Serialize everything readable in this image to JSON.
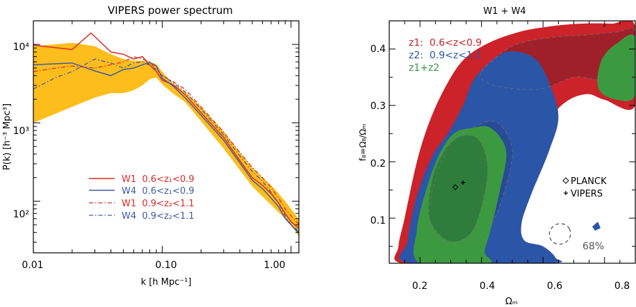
{
  "chart_data": [
    {
      "type": "line",
      "title": "VIPERS power spectrum",
      "xlabel": "k [h Mpc⁻¹]",
      "ylabel": "P(k) [h⁻³ Mpc³]",
      "xscale": "log",
      "yscale": "log",
      "xlim": [
        0.01,
        1.15
      ],
      "ylim": [
        22,
        20000
      ],
      "x_ticks": [
        {
          "value": 0.01,
          "label": "0.01"
        },
        {
          "value": 0.1,
          "label": "0.10"
        },
        {
          "value": 1.0,
          "label": "1.00"
        }
      ],
      "y_ticks": [
        {
          "value": 100,
          "label": "10²"
        },
        {
          "value": 1000,
          "label": "10³"
        },
        {
          "value": 10000,
          "label": "10⁴"
        }
      ],
      "legend_position": "lower-left",
      "band": {
        "color": "#FDBD1A",
        "x": [
          0.01,
          0.02,
          0.03,
          0.04,
          0.05,
          0.06,
          0.07,
          0.08,
          0.09,
          0.1,
          0.12,
          0.15,
          0.2,
          0.3,
          0.4,
          0.5,
          0.6,
          0.7,
          0.8,
          0.9,
          1.0,
          1.1,
          1.15
        ],
        "lower": [
          1000,
          1600,
          2100,
          2400,
          2400,
          2600,
          3000,
          3600,
          3800,
          3100,
          2400,
          1850,
          1050,
          470,
          250,
          155,
          115,
          90,
          72,
          60,
          50,
          40,
          35
        ],
        "upper": [
          9500,
          10500,
          9500,
          7500,
          6500,
          6200,
          6200,
          6000,
          5600,
          4500,
          3200,
          2500,
          1600,
          780,
          420,
          270,
          200,
          160,
          125,
          100,
          80,
          65,
          58
        ]
      },
      "series": [
        {
          "name": "W1  0.6<z₁<0.9",
          "color": "#DD2A25",
          "dash": "solid",
          "x": [
            0.01,
            0.02,
            0.028,
            0.04,
            0.05,
            0.06,
            0.07,
            0.08,
            0.09,
            0.1,
            0.12,
            0.15,
            0.2,
            0.3,
            0.4,
            0.5,
            0.6,
            0.7,
            0.8,
            0.9,
            1.0,
            1.1,
            1.15
          ],
          "y": [
            9800,
            8600,
            14000,
            8000,
            7500,
            6500,
            7000,
            5500,
            4500,
            3500,
            3100,
            2300,
            1350,
            650,
            330,
            200,
            160,
            125,
            95,
            70,
            55,
            48,
            45
          ]
        },
        {
          "name": "W4  0.6<z₁<0.9",
          "color": "#3E5AA6",
          "dash": "solid",
          "x": [
            0.01,
            0.02,
            0.03,
            0.04,
            0.05,
            0.06,
            0.07,
            0.08,
            0.09,
            0.1,
            0.12,
            0.15,
            0.2,
            0.3,
            0.4,
            0.5,
            0.6,
            0.7,
            0.8,
            0.9,
            1.0,
            1.1,
            1.15
          ],
          "y": [
            5500,
            5800,
            4600,
            4000,
            4800,
            5000,
            5500,
            5900,
            5300,
            3700,
            3000,
            2100,
            1250,
            600,
            310,
            185,
            145,
            110,
            85,
            60,
            50,
            42,
            40
          ]
        },
        {
          "name": "W1  0.9<z₂<1.1",
          "color": "#DD2A25",
          "dash": "6,3,1.5,3",
          "x": [
            0.01,
            0.015,
            0.02,
            0.03,
            0.04,
            0.05,
            0.06,
            0.07,
            0.08,
            0.09,
            0.1,
            0.12,
            0.15,
            0.2,
            0.3,
            0.4,
            0.5,
            0.6,
            0.7,
            0.8,
            0.9,
            1.0,
            1.1,
            1.15
          ],
          "y": [
            4500,
            5000,
            5300,
            5000,
            5500,
            6000,
            7000,
            6500,
            6000,
            4800,
            4000,
            3400,
            2700,
            1600,
            760,
            420,
            270,
            200,
            150,
            110,
            80,
            65,
            55,
            50
          ]
        },
        {
          "name": "W4  0.9<z₂<1.1",
          "color": "#3E5AA6",
          "dash": "6,3,1.5,3",
          "x": [
            0.01,
            0.015,
            0.02,
            0.03,
            0.04,
            0.05,
            0.06,
            0.07,
            0.08,
            0.09,
            0.1,
            0.12,
            0.15,
            0.2,
            0.3,
            0.4,
            0.5,
            0.6,
            0.7,
            0.8,
            0.9,
            1.0,
            1.1,
            1.15
          ],
          "y": [
            2700,
            3800,
            4500,
            6500,
            5800,
            5000,
            5800,
            6000,
            5400,
            4800,
            4000,
            3300,
            2500,
            1500,
            700,
            380,
            240,
            180,
            130,
            95,
            65,
            50,
            44,
            40
          ]
        }
      ]
    },
    {
      "type": "scatter",
      "title": "W1 + W4",
      "xlabel": "Ωₘ",
      "ylabel": "f₈=Ω₈/Ωₘ",
      "xlim": [
        0.1,
        0.9
      ],
      "ylim": [
        0.02,
        0.45
      ],
      "x_ticks": [
        {
          "value": 0.2,
          "label": "0.2"
        },
        {
          "value": 0.4,
          "label": "0.4"
        },
        {
          "value": 0.6,
          "label": "0.6"
        },
        {
          "value": 0.8,
          "label": "0.8"
        }
      ],
      "y_ticks": [
        {
          "value": 0.1,
          "label": "0.1"
        },
        {
          "value": 0.2,
          "label": "0.2"
        },
        {
          "value": 0.3,
          "label": "0.3"
        },
        {
          "value": 0.4,
          "label": "0.4"
        }
      ],
      "legend_position": "top-left",
      "series": [
        {
          "name": "z1:  0.6<z<0.9",
          "color": "#CC2229",
          "dark_color": "#A0202A"
        },
        {
          "name": "z2:  0.9<z<1.1",
          "color": "#2B55A6",
          "dark_color": "#274B96"
        },
        {
          "name": "z1+z2",
          "color": "#3B9A3F",
          "dark_color": "#2F7D3A"
        }
      ],
      "points": [
        {
          "name": "PLANCK",
          "marker": "diamond",
          "x": 0.315,
          "y": 0.155
        },
        {
          "name": "VIPERS",
          "marker": "plus",
          "x": 0.34,
          "y": 0.163
        }
      ],
      "annotation": "68%",
      "contours": {
        "z1_outer": [
          [
            0.14,
            0.02
          ],
          [
            0.13,
            0.05
          ],
          [
            0.15,
            0.1
          ],
          [
            0.19,
            0.2
          ],
          [
            0.23,
            0.27
          ],
          [
            0.28,
            0.33
          ],
          [
            0.34,
            0.38
          ],
          [
            0.42,
            0.41
          ],
          [
            0.52,
            0.43
          ],
          [
            0.62,
            0.44
          ],
          [
            0.72,
            0.445
          ],
          [
            0.82,
            0.445
          ],
          [
            0.9,
            0.44
          ],
          [
            0.9,
            0.3
          ],
          [
            0.8,
            0.31
          ],
          [
            0.74,
            0.32
          ],
          [
            0.66,
            0.3
          ],
          [
            0.55,
            0.23
          ],
          [
            0.5,
            0.19
          ],
          [
            0.44,
            0.1
          ],
          [
            0.43,
            0.07
          ],
          [
            0.4,
            0.05
          ],
          [
            0.42,
            0.03
          ],
          [
            0.4,
            0.02
          ]
        ],
        "z1_inner": [
          [
            0.4,
            0.36
          ],
          [
            0.5,
            0.405
          ],
          [
            0.62,
            0.42
          ],
          [
            0.74,
            0.425
          ],
          [
            0.84,
            0.43
          ],
          [
            0.9,
            0.43
          ],
          [
            0.9,
            0.34
          ],
          [
            0.78,
            0.345
          ],
          [
            0.7,
            0.35
          ],
          [
            0.6,
            0.33
          ],
          [
            0.5,
            0.33
          ],
          [
            0.42,
            0.34
          ]
        ],
        "z2_outer": [
          [
            0.17,
            0.02
          ],
          [
            0.16,
            0.06
          ],
          [
            0.19,
            0.14
          ],
          [
            0.24,
            0.21
          ],
          [
            0.29,
            0.25
          ],
          [
            0.34,
            0.3
          ],
          [
            0.38,
            0.35
          ],
          [
            0.46,
            0.39
          ],
          [
            0.52,
            0.395
          ],
          [
            0.58,
            0.38
          ],
          [
            0.62,
            0.34
          ],
          [
            0.65,
            0.28
          ],
          [
            0.62,
            0.22
          ],
          [
            0.56,
            0.14
          ],
          [
            0.53,
            0.09
          ],
          [
            0.54,
            0.06
          ],
          [
            0.6,
            0.05
          ],
          [
            0.64,
            0.03
          ],
          [
            0.62,
            0.02
          ]
        ],
        "z2_inner": [
          [
            0.23,
            0.1
          ],
          [
            0.25,
            0.17
          ],
          [
            0.3,
            0.23
          ],
          [
            0.37,
            0.26
          ],
          [
            0.45,
            0.27
          ],
          [
            0.5,
            0.22
          ],
          [
            0.47,
            0.14
          ],
          [
            0.42,
            0.08
          ],
          [
            0.35,
            0.06
          ],
          [
            0.27,
            0.06
          ]
        ],
        "combined_outer": [
          [
            0.2,
            0.02
          ],
          [
            0.19,
            0.08
          ],
          [
            0.22,
            0.15
          ],
          [
            0.26,
            0.21
          ],
          [
            0.31,
            0.25
          ],
          [
            0.37,
            0.26
          ],
          [
            0.43,
            0.26
          ],
          [
            0.48,
            0.22
          ],
          [
            0.46,
            0.15
          ],
          [
            0.43,
            0.08
          ],
          [
            0.41,
            0.04
          ],
          [
            0.42,
            0.02
          ]
        ],
        "combined_inner": [
          [
            0.23,
            0.1
          ],
          [
            0.24,
            0.17
          ],
          [
            0.28,
            0.22
          ],
          [
            0.33,
            0.245
          ],
          [
            0.39,
            0.24
          ],
          [
            0.42,
            0.19
          ],
          [
            0.4,
            0.12
          ],
          [
            0.36,
            0.07
          ],
          [
            0.29,
            0.06
          ]
        ],
        "combined_upper_right": [
          [
            0.78,
            0.33
          ],
          [
            0.79,
            0.38
          ],
          [
            0.84,
            0.41
          ],
          [
            0.9,
            0.42
          ],
          [
            0.9,
            0.32
          ],
          [
            0.84,
            0.31
          ]
        ],
        "ellipse_68": {
          "cx": 0.655,
          "cy": 0.072,
          "rx": 0.035,
          "ry": 0.018,
          "angle": 30
        }
      }
    }
  ]
}
